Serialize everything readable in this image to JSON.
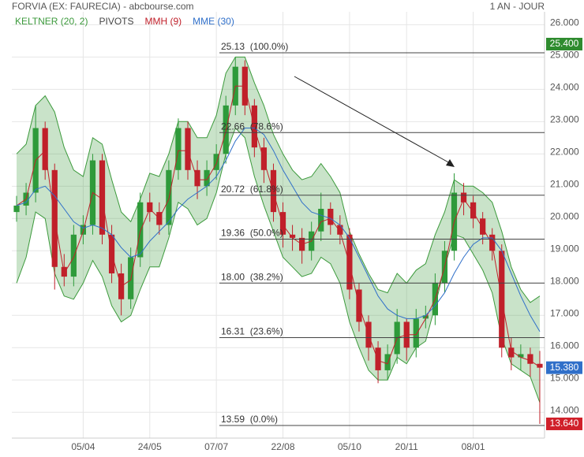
{
  "chart_data": {
    "type": "candlestick",
    "title": "FORVIA (EX: FAURECIA) - abcbourse.com",
    "subtitle": "1 AN - JOUR",
    "categories": [
      null,
      null,
      null,
      null,
      null,
      null,
      null,
      "05/04",
      null,
      null,
      null,
      null,
      null,
      null,
      "24/05",
      null,
      null,
      null,
      null,
      null,
      null,
      "07/07",
      null,
      null,
      null,
      null,
      null,
      null,
      "22/08",
      null,
      null,
      null,
      null,
      null,
      null,
      "05/10",
      null,
      null,
      null,
      null,
      null,
      "20/11",
      null,
      null,
      null,
      null,
      null,
      null,
      "08/01",
      null,
      null,
      null,
      null,
      null,
      null,
      null
    ],
    "ohlc": {
      "open": [
        20.2,
        20.4,
        20.8,
        22.8,
        21.5,
        18.5,
        18.2,
        19.5,
        19.8,
        21.8,
        19.5,
        18.3,
        17.5,
        18.8,
        20.5,
        20.2,
        19.8,
        21.5,
        22.8,
        21.5,
        21.0,
        21.5,
        22.0,
        23.5,
        24.7,
        23.5,
        22.2,
        21.5,
        20.2,
        19.5,
        19.4,
        19.0,
        19.6,
        20.3,
        19.8,
        19.5,
        17.8,
        16.8,
        16.0,
        15.3,
        15.8,
        16.8,
        16.0,
        16.9,
        17.0,
        18.0,
        19.0,
        20.8,
        20.5,
        20.0,
        19.5,
        19.0,
        16.0,
        15.7,
        15.8,
        15.5
      ],
      "high": [
        20.7,
        21.1,
        23.5,
        23.0,
        21.7,
        18.9,
        19.8,
        20.1,
        22.0,
        22.0,
        19.8,
        18.6,
        19.1,
        20.8,
        20.8,
        20.5,
        21.8,
        23.1,
        23.0,
        21.8,
        21.8,
        22.3,
        23.8,
        25.0,
        24.9,
        23.7,
        22.5,
        21.7,
        20.5,
        19.8,
        19.7,
        19.9,
        20.8,
        20.5,
        20.1,
        19.7,
        18.0,
        17.0,
        16.2,
        16.1,
        17.2,
        16.9,
        17.2,
        17.3,
        18.3,
        19.3,
        21.4,
        21.1,
        20.7,
        20.2,
        19.7,
        19.2,
        16.3,
        16.1,
        16.0,
        15.9
      ],
      "low": [
        19.9,
        20.1,
        20.5,
        21.2,
        17.8,
        17.9,
        17.9,
        19.2,
        19.5,
        19.2,
        18.0,
        17.0,
        17.2,
        18.5,
        19.9,
        19.5,
        19.5,
        21.2,
        21.2,
        20.6,
        20.7,
        21.2,
        21.7,
        23.2,
        23.2,
        21.9,
        21.1,
        19.9,
        19.1,
        19.0,
        18.6,
        18.7,
        19.3,
        19.5,
        19.2,
        17.5,
        16.5,
        15.6,
        14.9,
        15.0,
        15.5,
        15.6,
        15.7,
        16.6,
        16.7,
        17.7,
        18.7,
        20.1,
        19.7,
        19.2,
        18.7,
        15.7,
        15.3,
        15.3,
        15.1,
        13.64
      ],
      "close": [
        20.4,
        20.8,
        22.8,
        21.5,
        18.5,
        18.2,
        19.5,
        19.8,
        21.8,
        19.5,
        18.3,
        17.5,
        18.8,
        20.5,
        20.2,
        19.8,
        21.5,
        22.8,
        21.5,
        21.0,
        21.5,
        22.0,
        23.5,
        24.7,
        23.5,
        22.2,
        21.5,
        20.2,
        19.5,
        19.4,
        19.0,
        19.6,
        20.3,
        19.8,
        19.5,
        17.8,
        16.8,
        16.0,
        15.3,
        15.8,
        16.8,
        16.0,
        16.9,
        17.0,
        18.0,
        19.0,
        20.8,
        20.5,
        20.0,
        19.5,
        19.0,
        16.0,
        15.7,
        15.8,
        15.5,
        15.38
      ],
      "up_color": "#2e9a3a",
      "down_color": "#c0202a"
    },
    "series": [
      {
        "name": "KELTNER (20, 2)",
        "color": "#3c9a3c",
        "upper": [
          22.0,
          22.3,
          23.5,
          23.8,
          23.3,
          22.2,
          21.5,
          21.3,
          22.5,
          22.3,
          21.2,
          20.2,
          19.9,
          20.6,
          21.4,
          21.3,
          22.0,
          23.0,
          23.0,
          22.5,
          22.5,
          23.2,
          24.5,
          25.0,
          25.0,
          24.2,
          23.5,
          22.6,
          22.0,
          21.5,
          21.2,
          21.3,
          21.7,
          21.3,
          20.8,
          19.6,
          18.9,
          18.3,
          17.8,
          17.7,
          18.3,
          18.0,
          18.4,
          18.6,
          19.5,
          20.2,
          21.2,
          21.0,
          21.0,
          20.8,
          20.5,
          19.6,
          18.5,
          17.8,
          17.4,
          17.6
        ],
        "lower": [
          18.0,
          18.8,
          20.2,
          20.0,
          18.3,
          17.6,
          17.5,
          18.0,
          18.7,
          18.2,
          17.3,
          16.8,
          17.0,
          17.8,
          18.5,
          18.5,
          19.4,
          20.5,
          20.3,
          19.8,
          20.0,
          20.8,
          22.0,
          22.8,
          22.5,
          21.3,
          20.4,
          19.6,
          18.8,
          18.5,
          18.2,
          18.3,
          18.8,
          18.6,
          18.0,
          16.8,
          16.0,
          15.3,
          15.0,
          15.0,
          15.7,
          15.5,
          16.0,
          16.2,
          17.3,
          18.5,
          19.5,
          19.4,
          18.9,
          18.4,
          17.7,
          16.3,
          15.5,
          15.3,
          15.1,
          14.3
        ]
      },
      {
        "name": "PIVOTS",
        "color": "#444444",
        "levels": [
          {
            "value": 25.13,
            "label": "25.13  (100.0%)"
          },
          {
            "value": 22.66,
            "label": "22.66  (78.6%)"
          },
          {
            "value": 20.72,
            "label": "20.72  (61.8%)"
          },
          {
            "value": 19.36,
            "label": "19.36  (50.0%)"
          },
          {
            "value": 18.0,
            "label": "18.00  (38.2%)"
          },
          {
            "value": 16.31,
            "label": "16.31  (23.6%)"
          },
          {
            "value": 13.59,
            "label": "13.59  (0.0%)"
          }
        ]
      },
      {
        "name": "MMH (9)",
        "color": "#c0202a",
        "values": [
          20.4,
          20.6,
          21.8,
          22.1,
          20.0,
          18.3,
          18.8,
          19.6,
          20.8,
          20.6,
          18.9,
          17.9,
          18.1,
          19.6,
          20.3,
          20.0,
          20.6,
          22.1,
          22.1,
          21.2,
          21.2,
          21.7,
          22.7,
          24.1,
          24.1,
          22.8,
          21.8,
          20.8,
          19.8,
          19.4,
          19.2,
          19.3,
          19.9,
          20.0,
          19.6,
          18.6,
          17.3,
          16.4,
          15.6,
          15.5,
          16.3,
          16.4,
          16.4,
          16.9,
          17.5,
          18.5,
          19.9,
          20.6,
          20.2,
          19.7,
          19.2,
          17.5,
          15.9,
          15.7,
          15.6,
          15.4
        ]
      },
      {
        "name": "MME (30)",
        "color": "#2f6fc9",
        "values": [
          20.4,
          20.5,
          20.9,
          21.0,
          20.7,
          20.3,
          19.9,
          19.7,
          19.8,
          19.7,
          19.5,
          19.1,
          18.8,
          18.9,
          19.3,
          19.6,
          19.9,
          20.3,
          20.6,
          20.8,
          21.0,
          21.3,
          21.8,
          22.4,
          22.8,
          22.8,
          22.6,
          22.1,
          21.5,
          21.0,
          20.5,
          20.2,
          20.1,
          20.0,
          19.8,
          19.4,
          18.8,
          18.2,
          17.6,
          17.2,
          17.0,
          16.9,
          16.9,
          17.0,
          17.3,
          17.7,
          18.3,
          18.8,
          19.2,
          19.4,
          19.4,
          19.0,
          18.3,
          17.6,
          17.0,
          16.5
        ]
      }
    ],
    "price_tags": [
      {
        "value": 25.4,
        "label": "25.400",
        "color": "#2e8b2e"
      },
      {
        "value": 15.38,
        "label": "15.380",
        "color": "#2f6fc9"
      },
      {
        "value": 13.64,
        "label": "13.640",
        "color": "#d0202a"
      }
    ],
    "ylim": [
      13.2,
      26.4
    ],
    "yticks": [
      {
        "value": 14,
        "label": "14.000"
      },
      {
        "value": 15,
        "label": "15.000"
      },
      {
        "value": 16,
        "label": "16.000"
      },
      {
        "value": 17,
        "label": "17.000"
      },
      {
        "value": 18,
        "label": "18.000"
      },
      {
        "value": 19,
        "label": "19.000"
      },
      {
        "value": 20,
        "label": "20.000"
      },
      {
        "value": 21,
        "label": "21.000"
      },
      {
        "value": 22,
        "label": "22.000"
      },
      {
        "value": 23,
        "label": "23.000"
      },
      {
        "value": 24,
        "label": "24.000"
      },
      {
        "value": 25,
        "label": "25.000"
      },
      {
        "value": 26,
        "label": "26.000"
      }
    ],
    "grid": true
  }
}
